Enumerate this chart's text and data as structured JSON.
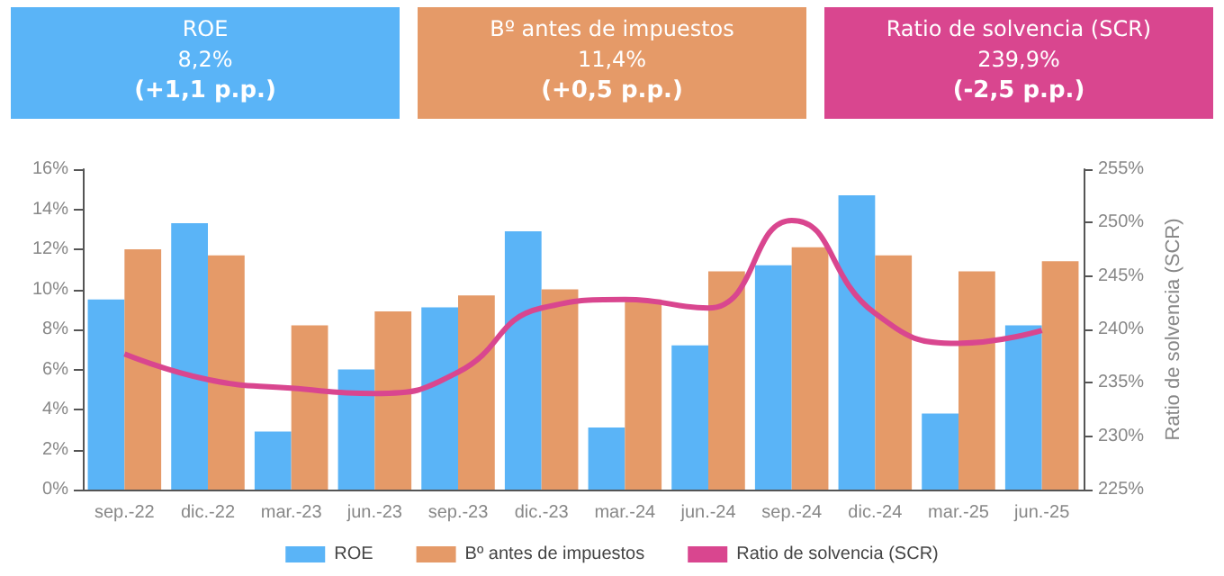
{
  "chart_data": {
    "type": "bar",
    "annotations": [
      "ROE",
      "8,2%",
      "(+1,1 p.p.)",
      "Bº antes de impuestos",
      "11,4%",
      "(+0,5 p.p.)",
      "Ratio de solvencia (SCR)",
      "239,9%",
      "(-2,5 p.p.)"
    ],
    "categories": [
      "sep.-22",
      "dic.-22",
      "mar.-23",
      "jun.-23",
      "sep.-23",
      "dic.-23",
      "mar.-24",
      "jun.-24",
      "sep.-24",
      "dic.-24",
      "mar.-25",
      "jun.-25"
    ],
    "series": [
      {
        "name": "ROE",
        "color": "#5ab4f7",
        "values": [
          9.5,
          13.3,
          2.9,
          6.0,
          9.1,
          12.9,
          3.1,
          7.2,
          11.2,
          14.7,
          3.8,
          8.2
        ]
      },
      {
        "name": "Bº antes de impuestos",
        "color": "#e59a68",
        "values": [
          12.0,
          11.7,
          8.2,
          8.9,
          9.7,
          10.0,
          9.5,
          10.9,
          12.1,
          11.7,
          10.9,
          11.4
        ]
      },
      {
        "name": "Ratio de solvencia (SCR)",
        "type": "line",
        "axis": "y2",
        "color": "#d9468f",
        "values": [
          237.7,
          235.3,
          234.5,
          234.0,
          236.0,
          242.0,
          242.8,
          242.0,
          250.2,
          241.5,
          238.7,
          239.9
        ]
      }
    ],
    "ylim": [
      0,
      16
    ],
    "yticks": [
      {
        "value": 0,
        "label": "0%"
      },
      {
        "value": 2,
        "label": "2%"
      },
      {
        "value": 4,
        "label": "4%"
      },
      {
        "value": 6,
        "label": "6%"
      },
      {
        "value": 8,
        "label": "8%"
      },
      {
        "value": 10,
        "label": "10%"
      },
      {
        "value": 12,
        "label": "12%"
      },
      {
        "value": 14,
        "label": "14%"
      },
      {
        "value": 16,
        "label": "16%"
      }
    ],
    "y2label": "Ratio de solvencia (SCR)",
    "y2lim": [
      225,
      255
    ],
    "y2ticks": [
      {
        "value": 225,
        "label": "225%"
      },
      {
        "value": 230,
        "label": "230%"
      },
      {
        "value": 235,
        "label": "235%"
      },
      {
        "value": 240,
        "label": "240%"
      },
      {
        "value": 245,
        "label": "245%"
      },
      {
        "value": 250,
        "label": "250%"
      },
      {
        "value": 255,
        "label": "255%"
      }
    ],
    "legend": "bottom",
    "grid": false,
    "marker": "none"
  }
}
